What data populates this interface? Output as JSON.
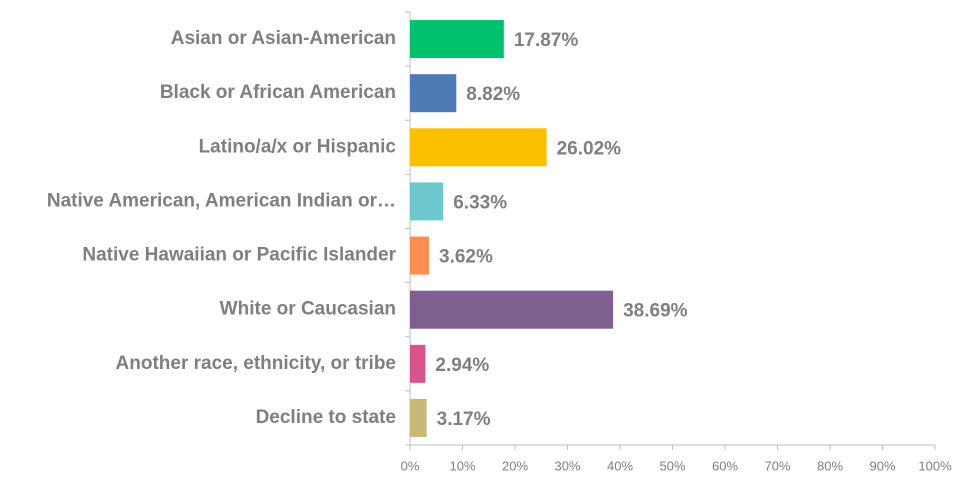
{
  "chart_data": {
    "type": "hbar",
    "categories": [
      "Asian or Asian-American",
      "Black or African American",
      "Latino/a/x or Hispanic",
      "Native American, American Indian or…",
      "Native Hawaiian or Pacific Islander",
      "White or Caucasian",
      "Another race, ethnicity, or tribe",
      "Decline to state"
    ],
    "values": [
      17.87,
      8.82,
      26.02,
      6.33,
      3.62,
      38.69,
      2.94,
      3.17
    ],
    "value_labels": [
      "17.87%",
      "8.82%",
      "26.02%",
      "6.33%",
      "3.62%",
      "38.69%",
      "2.94%",
      "3.17%"
    ],
    "colors": [
      "#00c16e",
      "#4e7ab5",
      "#fac000",
      "#6cc8cc",
      "#ff8c50",
      "#7e5f8f",
      "#d9548a",
      "#c8b878"
    ],
    "xlim": [
      0,
      100
    ],
    "xticks": [
      {
        "value": 0,
        "label": "0%"
      },
      {
        "value": 10,
        "label": "10%"
      },
      {
        "value": 20,
        "label": "20%"
      },
      {
        "value": 30,
        "label": "30%"
      },
      {
        "value": 40,
        "label": "40%"
      },
      {
        "value": 50,
        "label": "50%"
      },
      {
        "value": 60,
        "label": "60%"
      },
      {
        "value": 70,
        "label": "70%"
      },
      {
        "value": 80,
        "label": "80%"
      },
      {
        "value": 90,
        "label": "90%"
      },
      {
        "value": 100,
        "label": "100%"
      }
    ]
  }
}
